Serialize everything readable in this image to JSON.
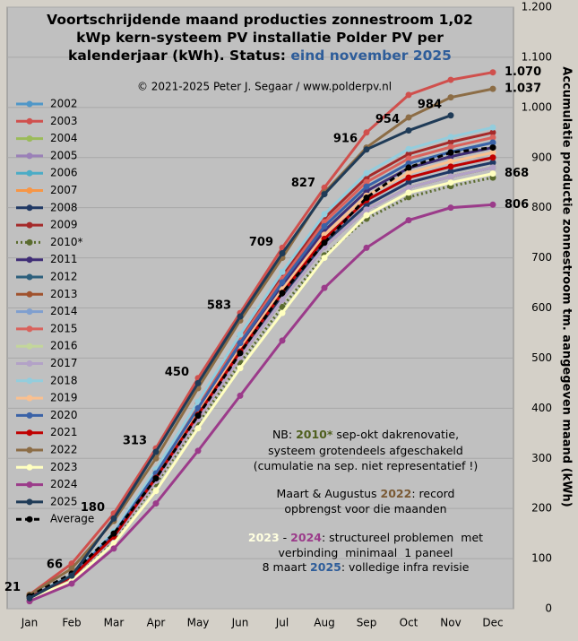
{
  "chart_data": {
    "type": "line",
    "title_lines": [
      "Voortschrijdende maand producties zonnestroom 1,02",
      "kWp kern-systeem PV installatie Polder PV per",
      "kalenderjaar (kWh). Status:"
    ],
    "status": "eind november 2025",
    "copyright": "© 2021-2025 Peter J. Segaar / www.polderpv.nl",
    "y_label": "Accumulatie productie zonnestroom tm. aangegeven maand (kWh)",
    "categories": [
      "Jan",
      "Feb",
      "Mar",
      "Apr",
      "May",
      "Jun",
      "Jul",
      "Aug",
      "Sep",
      "Oct",
      "Nov",
      "Dec"
    ],
    "ylim": [
      0,
      1200
    ],
    "yticks": [
      0,
      100,
      200,
      300,
      400,
      500,
      600,
      700,
      800,
      900,
      {
        "value": 1000,
        "label": "1.000"
      },
      {
        "value": 1100,
        "label": "1.100"
      },
      {
        "value": 1200,
        "label": "1.200"
      }
    ],
    "grid": true,
    "series": [
      {
        "name": "2002",
        "color": "#4f97c8",
        "values": [
          23,
          63,
          144,
          261,
          387,
          513,
          630,
          738,
          815,
          860,
          882,
          900
        ]
      },
      {
        "name": "2003",
        "color": "#d0504d",
        "values": [
          28,
          90,
          190,
          320,
          460,
          590,
          720,
          840,
          950,
          1025,
          1055,
          1070
        ],
        "value_labels": [
          null,
          null,
          null,
          null,
          null,
          null,
          null,
          null,
          null,
          null,
          null,
          "1.070"
        ]
      },
      {
        "name": "2004",
        "color": "#9bbb59",
        "values": [
          23,
          64,
          147,
          267,
          396,
          524,
          644,
          754,
          833,
          879,
          902,
          920
        ]
      },
      {
        "name": "2005",
        "color": "#9a80b8",
        "values": [
          22,
          62,
          142,
          258,
          383,
          507,
          623,
          730,
          805,
          850,
          872,
          890
        ]
      },
      {
        "name": "2006",
        "color": "#4bacc6",
        "values": [
          23,
          65,
          149,
          270,
          400,
          530,
          651,
          763,
          842,
          888,
          911,
          930
        ]
      },
      {
        "name": "2007",
        "color": "#f79646",
        "values": [
          22,
          62,
          141,
          255,
          378,
          502,
          616,
          722,
          796,
          840,
          862,
          880
        ]
      },
      {
        "name": "2008",
        "color": "#1f3864",
        "values": [
          22,
          62,
          142,
          258,
          383,
          507,
          623,
          730,
          805,
          850,
          872,
          890
        ]
      },
      {
        "name": "2009",
        "color": "#a52a2a",
        "values": [
          24,
          67,
          152,
          276,
          409,
          542,
          665,
          779,
          860,
          907,
          931,
          950
        ]
      },
      {
        "name": "2010*",
        "color": "#5a6b2e",
        "style": "dotted",
        "values": [
          22,
          60,
          138,
          249,
          370,
          490,
          602,
          705,
          778,
          821,
          843,
          860
        ]
      },
      {
        "name": "2011",
        "color": "#3f2d76",
        "values": [
          23,
          64,
          147,
          267,
          396,
          524,
          644,
          754,
          833,
          879,
          902,
          920
        ]
      },
      {
        "name": "2012",
        "color": "#2c5f7c",
        "values": [
          22,
          62,
          141,
          255,
          378,
          502,
          616,
          722,
          796,
          840,
          862,
          880
        ]
      },
      {
        "name": "2013",
        "color": "#a0522d",
        "values": [
          22,
          62,
          141,
          255,
          378,
          502,
          616,
          722,
          796,
          840,
          862,
          880
        ]
      },
      {
        "name": "2014",
        "color": "#7f9fcf",
        "values": [
          23,
          63,
          144,
          261,
          387,
          513,
          630,
          738,
          815,
          860,
          882,
          900
        ]
      },
      {
        "name": "2015",
        "color": "#d9625c",
        "values": [
          24,
          66,
          150,
          273,
          404,
          536,
          658,
          771,
          851,
          898,
          921,
          940
        ]
      },
      {
        "name": "2016",
        "color": "#c3d69b",
        "values": [
          22,
          62,
          141,
          255,
          378,
          502,
          616,
          722,
          796,
          840,
          862,
          880
        ]
      },
      {
        "name": "2017",
        "color": "#b3a2c7",
        "values": [
          22,
          62,
          141,
          255,
          378,
          502,
          616,
          722,
          796,
          840,
          862,
          880
        ]
      },
      {
        "name": "2018",
        "color": "#93cddd",
        "values": [
          24,
          67,
          154,
          278,
          413,
          547,
          672,
          787,
          869,
          917,
          941,
          960
        ]
      },
      {
        "name": "2019",
        "color": "#fac090",
        "values": [
          23,
          64,
          146,
          264,
          391,
          519,
          637,
          746,
          824,
          869,
          892,
          910
        ]
      },
      {
        "name": "2020",
        "color": "#3a62a7",
        "values": [
          23,
          65,
          149,
          270,
          400,
          530,
          651,
          763,
          842,
          888,
          911,
          930
        ]
      },
      {
        "name": "2021",
        "color": "#c00000",
        "values": [
          23,
          63,
          144,
          261,
          387,
          513,
          630,
          738,
          815,
          860,
          882,
          900
        ]
      },
      {
        "name": "2022",
        "color": "#8c6d46",
        "values": [
          28,
          80,
          175,
          300,
          440,
          575,
          700,
          830,
          920,
          980,
          1020,
          1037
        ],
        "value_labels": [
          null,
          null,
          null,
          null,
          null,
          null,
          null,
          null,
          null,
          null,
          null,
          "1.037"
        ]
      },
      {
        "name": "2023",
        "color": "#ffffc0",
        "values": [
          20,
          55,
          130,
          235,
          360,
          480,
          590,
          700,
          785,
          830,
          850,
          868
        ],
        "value_labels": [
          null,
          null,
          null,
          null,
          null,
          null,
          null,
          null,
          null,
          null,
          null,
          "868"
        ]
      },
      {
        "name": "2024",
        "color": "#9b3b8a",
        "values": [
          15,
          50,
          120,
          210,
          315,
          425,
          535,
          640,
          720,
          775,
          800,
          806
        ],
        "value_labels": [
          null,
          null,
          null,
          null,
          null,
          null,
          null,
          null,
          null,
          null,
          null,
          "806"
        ]
      },
      {
        "name": "2025",
        "color": "#1f3b57",
        "values": [
          21,
          66,
          180,
          313,
          450,
          583,
          709,
          827,
          916,
          954,
          984,
          null
        ],
        "value_labels": [
          "21",
          "66",
          "180",
          "313",
          "450",
          "583",
          "709",
          "827",
          "916",
          "954",
          "984",
          null
        ]
      },
      {
        "name": "Average",
        "color": "#000000",
        "style": "dashed",
        "values": [
          25,
          70,
          150,
          260,
          385,
          510,
          630,
          730,
          820,
          880,
          910,
          920
        ]
      }
    ],
    "notes": [
      [
        {
          "text": "NB: "
        },
        {
          "text": "2010*",
          "color": "#4f5f1e"
        },
        {
          "text": " sep-okt dakrenovatie,"
        }
      ],
      [
        {
          "text": "systeem grotendeels afgeschakeld"
        }
      ],
      [
        {
          "text": "(cumulatie na sep. niet representatief !)"
        }
      ],
      [
        {
          "text": "Maart & Augustus "
        },
        {
          "text": "2022",
          "color": "#7a5a34"
        },
        {
          "text": ": record"
        }
      ],
      [
        {
          "text": "opbrengst voor die maanden"
        }
      ],
      [
        {
          "text": "2023",
          "color": "#ffffe0"
        },
        {
          "text": " - "
        },
        {
          "text": "2024",
          "color": "#9b3b8a"
        },
        {
          "text": ": structureel problemen  met"
        }
      ],
      [
        {
          "text": "verbinding  minimaal  1 paneel"
        }
      ],
      [
        {
          "text": "8 maart "
        },
        {
          "text": "2025",
          "color": "#2e5d9a"
        },
        {
          "text": ": volledige infra revisie"
        }
      ]
    ]
  }
}
